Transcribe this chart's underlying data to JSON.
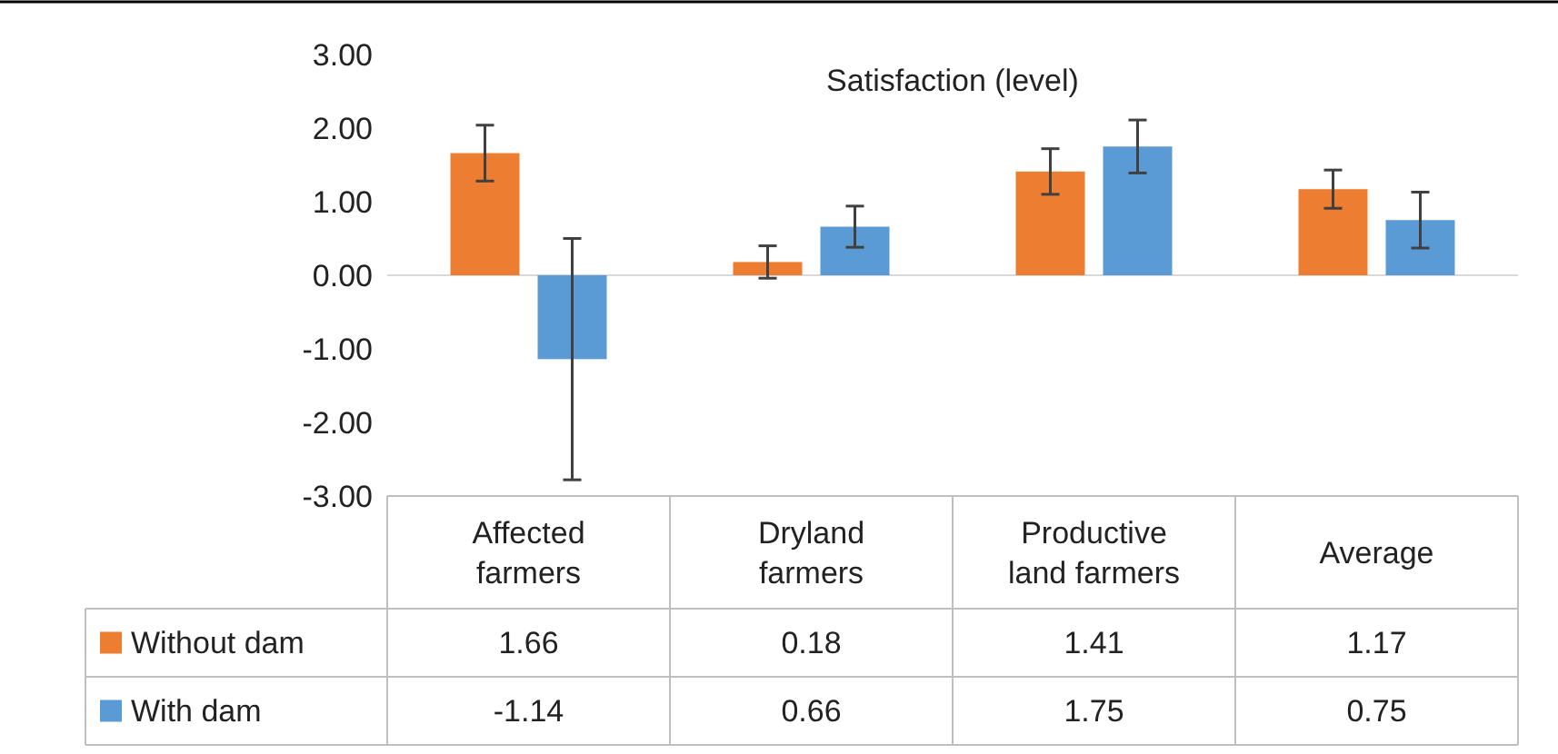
{
  "chart_data": {
    "type": "bar",
    "title": "Satisfaction (level)",
    "categories": [
      "Affected farmers",
      "Dryland farmers",
      "Productive land farmers",
      "Average"
    ],
    "series": [
      {
        "name": "Without dam",
        "color": "#ed7d31",
        "values": [
          1.66,
          0.18,
          1.41,
          1.17
        ],
        "errors": [
          0.38,
          0.22,
          0.31,
          0.26
        ]
      },
      {
        "name": "With dam",
        "color": "#5b9bd5",
        "values": [
          -1.14,
          0.66,
          1.75,
          0.75
        ],
        "errors": [
          1.64,
          0.28,
          0.36,
          0.38
        ]
      }
    ],
    "ylim": [
      -3,
      3
    ],
    "yticks": [
      {
        "value": -3,
        "label": "-3.00"
      },
      {
        "value": -2,
        "label": "-2.00"
      },
      {
        "value": -1,
        "label": "-1.00"
      },
      {
        "value": 0,
        "label": "0.00"
      },
      {
        "value": 1,
        "label": "1.00"
      },
      {
        "value": 2,
        "label": "2.00"
      },
      {
        "value": 3,
        "label": "3.00"
      }
    ],
    "data_labels": true,
    "legend": "bottom"
  }
}
